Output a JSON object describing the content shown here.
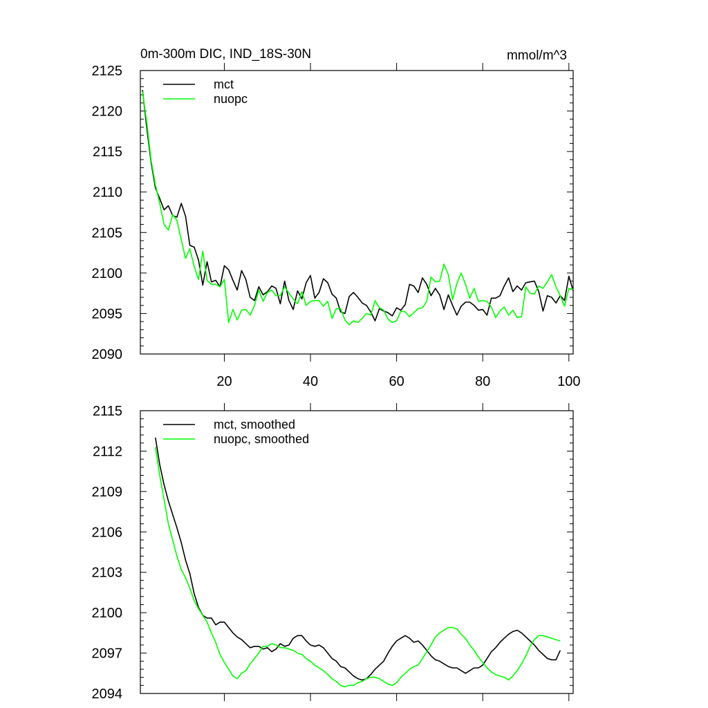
{
  "chart_data": [
    {
      "type": "line",
      "title": "0m-300m DIC, IND_18S-30N",
      "units": "mmol/m^3",
      "xlabel": "",
      "ylabel": "",
      "xlim": [
        0.5,
        101
      ],
      "ylim": [
        2090,
        2125
      ],
      "x_ticks": [
        20,
        40,
        60,
        80,
        100
      ],
      "y_ticks": [
        2090,
        2095,
        2100,
        2105,
        2110,
        2115,
        2120,
        2125
      ],
      "show_x_tick_labels": true,
      "legend_position": "top-left",
      "series": [
        {
          "name": "mct",
          "color": "#000000",
          "x_start": 1,
          "values": [
            2122.6,
            2117.9,
            2113.6,
            2110.5,
            2109.2,
            2107.8,
            2108.3,
            2107.1,
            2106.9,
            2108.6,
            2107.0,
            2103.4,
            2103.2,
            2101.6,
            2098.5,
            2101.4,
            2098.9,
            2099.1,
            2098.3,
            2100.9,
            2100.4,
            2099.1,
            2097.9,
            2100.3,
            2099.2,
            2097.0,
            2096.6,
            2098.3,
            2097.3,
            2097.7,
            2098.4,
            2098.1,
            2096.2,
            2099.0,
            2096.6,
            2095.5,
            2097.8,
            2096.8,
            2098.8,
            2099.7,
            2096.9,
            2097.6,
            2099.3,
            2098.8,
            2097.4,
            2096.9,
            2095.2,
            2095.0,
            2097.1,
            2097.6,
            2097.0,
            2096.3,
            2096.0,
            2095.2,
            2094.1,
            2095.6,
            2095.3,
            2095.1,
            2094.7,
            2095.7,
            2095.4,
            2096.1,
            2098.6,
            2098.4,
            2097.6,
            2099.4,
            2098.6,
            2097.2,
            2098.1,
            2097.3,
            2095.5,
            2097.3,
            2096.0,
            2094.8,
            2095.9,
            2096.4,
            2096.4,
            2096.0,
            2095.4,
            2095.5,
            2094.8,
            2096.9,
            2096.9,
            2097.2,
            2098.4,
            2099.4,
            2097.7,
            2098.4,
            2097.9,
            2098.8,
            2098.9,
            2099.0,
            2097.7,
            2095.3,
            2097.2,
            2097.0,
            2096.3,
            2097.2,
            2096.6,
            2099.6,
            2097.8
          ]
        },
        {
          "name": "nuopc",
          "color": "#00ff00",
          "x_start": 1,
          "values": [
            2122.4,
            2118.6,
            2113.9,
            2110.9,
            2108.6,
            2106.0,
            2105.3,
            2107.2,
            2106.5,
            2104.1,
            2101.8,
            2103.0,
            2100.8,
            2099.2,
            2102.7,
            2099.1,
            2098.6,
            2098.6,
            2098.3,
            2099.2,
            2093.9,
            2095.5,
            2094.2,
            2095.4,
            2095.5,
            2094.8,
            2096.0,
            2097.9,
            2096.5,
            2097.6,
            2097.9,
            2097.2,
            2097.2,
            2098.3,
            2097.5,
            2096.8,
            2096.2,
            2097.7,
            2096.0,
            2096.5,
            2096.6,
            2096.6,
            2095.9,
            2096.5,
            2094.4,
            2095.6,
            2095.6,
            2094.2,
            2093.6,
            2094.1,
            2093.9,
            2094.4,
            2095.0,
            2094.8,
            2096.6,
            2095.7,
            2095.4,
            2094.3,
            2093.9,
            2094.1,
            2095.3,
            2095.2,
            2094.6,
            2095.1,
            2095.6,
            2095.7,
            2096.5,
            2099.5,
            2098.9,
            2099.0,
            2101.1,
            2099.8,
            2096.7,
            2098.7,
            2100.0,
            2098.6,
            2096.9,
            2098.1,
            2096.5,
            2096.6,
            2096.5,
            2095.8,
            2094.5,
            2095.3,
            2095.8,
            2094.8,
            2095.4,
            2094.5,
            2094.6,
            2098.3,
            2097.5,
            2097.4,
            2098.4,
            2098.1,
            2098.9,
            2099.8,
            2098.3,
            2097.2,
            2095.9,
            2098.1,
            2098.0
          ]
        }
      ]
    },
    {
      "type": "line",
      "title": "",
      "xlabel": "",
      "ylabel": "",
      "xlim": [
        0.5,
        101
      ],
      "ylim": [
        2094,
        2115
      ],
      "x_ticks": [
        20,
        40,
        60,
        80,
        100
      ],
      "y_ticks": [
        2094,
        2097,
        2100,
        2103,
        2106,
        2109,
        2112,
        2115
      ],
      "show_x_tick_labels": false,
      "legend_position": "top-left",
      "series": [
        {
          "name": "mct, smoothed",
          "color": "#000000",
          "x_start": 4,
          "values": [
            2113.0,
            2111.0,
            2109.5,
            2108.3,
            2107.3,
            2106.3,
            2105.2,
            2103.9,
            2102.9,
            2101.4,
            2100.4,
            2099.8,
            2099.6,
            2099.6,
            2099.1,
            2099.3,
            2099.3,
            2098.9,
            2098.5,
            2098.2,
            2098.0,
            2097.7,
            2097.4,
            2097.5,
            2097.5,
            2097.3,
            2097.4,
            2097.1,
            2097.3,
            2097.7,
            2097.5,
            2097.6,
            2098.1,
            2098.3,
            2098.3,
            2097.9,
            2097.6,
            2097.5,
            2097.6,
            2097.4,
            2097.0,
            2096.6,
            2096.4,
            2096.0,
            2095.9,
            2095.6,
            2095.3,
            2095.1,
            2095.0,
            2095.1,
            2095.4,
            2095.8,
            2096.1,
            2096.4,
            2097.0,
            2097.5,
            2097.9,
            2098.1,
            2098.3,
            2098.1,
            2097.8,
            2097.9,
            2097.6,
            2097.2,
            2096.8,
            2096.5,
            2096.4,
            2096.2,
            2096.0,
            2095.9,
            2095.9,
            2095.7,
            2095.5,
            2095.7,
            2095.9,
            2095.9,
            2096.1,
            2096.6,
            2097.1,
            2097.4,
            2097.8,
            2098.1,
            2098.4,
            2098.6,
            2098.7,
            2098.5,
            2098.2,
            2097.9,
            2097.6,
            2097.2,
            2096.9,
            2096.6,
            2096.5,
            2096.5,
            2097.2
          ]
        },
        {
          "name": "nuopc, smoothed",
          "color": "#00ff00",
          "x_start": 4,
          "values": [
            2112.3,
            2110.2,
            2108.4,
            2106.6,
            2105.4,
            2104.2,
            2103.2,
            2102.6,
            2101.8,
            2100.9,
            2100.3,
            2099.8,
            2099.3,
            2098.5,
            2097.8,
            2096.9,
            2096.3,
            2095.8,
            2095.3,
            2095.1,
            2095.5,
            2095.7,
            2096.2,
            2096.6,
            2097.0,
            2097.5,
            2097.5,
            2097.7,
            2097.6,
            2097.4,
            2097.4,
            2097.3,
            2097.2,
            2097.0,
            2096.9,
            2096.6,
            2096.4,
            2096.1,
            2095.9,
            2095.7,
            2095.4,
            2095.1,
            2094.9,
            2094.6,
            2094.5,
            2094.6,
            2094.6,
            2094.8,
            2094.9,
            2095.1,
            2095.2,
            2095.2,
            2095.1,
            2094.9,
            2094.7,
            2094.6,
            2094.8,
            2095.2,
            2095.5,
            2095.8,
            2096.0,
            2096.1,
            2096.6,
            2097.1,
            2097.6,
            2098.2,
            2098.5,
            2098.7,
            2098.9,
            2098.9,
            2098.8,
            2098.4,
            2098.1,
            2097.6,
            2097.2,
            2096.7,
            2096.3,
            2095.9,
            2095.6,
            2095.4,
            2095.3,
            2095.2,
            2095.0,
            2095.3,
            2095.7,
            2096.2,
            2096.8,
            2097.5,
            2098.0,
            2098.3,
            2098.3,
            2098.2,
            2098.1,
            2098.0,
            2097.9
          ]
        }
      ]
    }
  ]
}
